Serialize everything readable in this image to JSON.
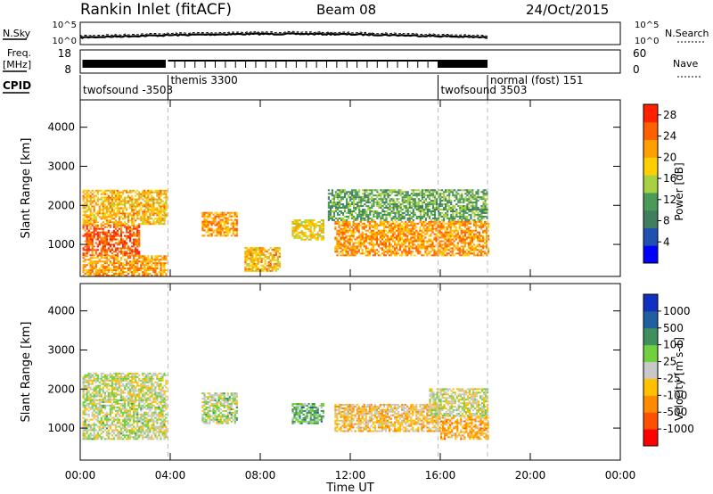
{
  "header": {
    "radar": "Rankin Inlet (fitACF)",
    "beam": "Beam 08",
    "date": "24/Oct/2015"
  },
  "noise_panel": {
    "left_label": "N.Sky",
    "left_ticks": [
      "10^5",
      "10^0"
    ],
    "right_ticks": [
      "10^5",
      "10^0"
    ],
    "right_label": "N.Search"
  },
  "freq_panel": {
    "label_line1": "Freq.",
    "label_line2": "[MHz]",
    "left_ticks": [
      "18",
      "8"
    ],
    "right_ticks": [
      "60",
      "0"
    ],
    "right_label": "Nave"
  },
  "cpid": {
    "label": "CPID",
    "segments": [
      {
        "name": "twofsound -3503",
        "start_hour": 0.0
      },
      {
        "name": "themis 3300",
        "start_hour": 3.9
      },
      {
        "name": "twofsound 3503",
        "start_hour": 15.9
      },
      {
        "name": "normal (fost) 151",
        "start_hour": 18.1
      }
    ]
  },
  "time_axis": {
    "ticks": [
      "00:00",
      "04:00",
      "08:00",
      "12:00",
      "16:00",
      "20:00",
      "00:00"
    ],
    "label": "Time UT",
    "range_hours": [
      0,
      24
    ]
  },
  "colors": {
    "power": [
      "#0000ff",
      "#2050b0",
      "#3f7f5f",
      "#4a9a5a",
      "#a8d040",
      "#ffd000",
      "#ffa000",
      "#ff6000",
      "#ff2000"
    ],
    "velocity": [
      "#ff0000",
      "#ff5000",
      "#ff8c00",
      "#ffc000",
      "#c8c8c8",
      "#70d040",
      "#3f8f5f",
      "#2060a0",
      "#1030c0"
    ]
  },
  "chart_data": [
    {
      "type": "heatmap",
      "panel": "power",
      "ylabel": "Slant Range [km]",
      "ylim": [
        180,
        4700
      ],
      "y_ticks": [
        "1000",
        "2000",
        "3000",
        "4000"
      ],
      "colorbar": {
        "label": "Power [dB]",
        "ticks": [
          "4",
          "8",
          "12",
          "16",
          "20",
          "24",
          "28"
        ],
        "range": [
          0,
          30
        ]
      },
      "regions": [
        {
          "t0": 0.1,
          "t1": 2.6,
          "r0": 700,
          "r1": 1500,
          "value": 25
        },
        {
          "t0": 0.1,
          "t1": 3.8,
          "r0": 1500,
          "r1": 2400,
          "value": 20
        },
        {
          "t0": 0.1,
          "t1": 3.8,
          "r0": 180,
          "r1": 700,
          "value": 22
        },
        {
          "t0": 5.4,
          "t1": 7.0,
          "r0": 1200,
          "r1": 1800,
          "value": 22
        },
        {
          "t0": 7.3,
          "t1": 8.9,
          "r0": 300,
          "r1": 900,
          "value": 20
        },
        {
          "t0": 9.4,
          "t1": 10.8,
          "r0": 1100,
          "r1": 1600,
          "value": 18
        },
        {
          "t0": 11.3,
          "t1": 18.1,
          "r0": 700,
          "r1": 1600,
          "value": 22
        },
        {
          "t0": 11.0,
          "t1": 18.1,
          "r0": 1600,
          "r1": 2400,
          "value": 12
        }
      ]
    },
    {
      "type": "heatmap",
      "panel": "velocity",
      "ylabel": "Slant Range [km]",
      "ylim": [
        180,
        4700
      ],
      "y_ticks": [
        "1000",
        "2000",
        "3000",
        "4000"
      ],
      "colorbar": {
        "label": "Velocity [m s-1]",
        "ticks": [
          "1000",
          "500",
          "100",
          "25",
          "-25",
          "-100",
          "-500",
          "-1000"
        ],
        "range": [
          -1000,
          1000
        ]
      },
      "regions": [
        {
          "t0": 0.1,
          "t1": 3.8,
          "r0": 700,
          "r1": 1700,
          "value": 50
        },
        {
          "t0": 0.1,
          "t1": 3.8,
          "r0": 1700,
          "r1": 2400,
          "value": 0
        },
        {
          "t0": 5.4,
          "t1": 7.0,
          "r0": 1100,
          "r1": 1900,
          "value": 80
        },
        {
          "t0": 9.4,
          "t1": 10.8,
          "r0": 1100,
          "r1": 1600,
          "value": 300
        },
        {
          "t0": 11.3,
          "t1": 16.0,
          "r0": 900,
          "r1": 1600,
          "value": -200
        },
        {
          "t0": 16.0,
          "t1": 18.1,
          "r0": 700,
          "r1": 1300,
          "value": -300
        },
        {
          "t0": 15.5,
          "t1": 18.1,
          "r0": 1300,
          "r1": 2000,
          "value": 0
        }
      ]
    }
  ]
}
